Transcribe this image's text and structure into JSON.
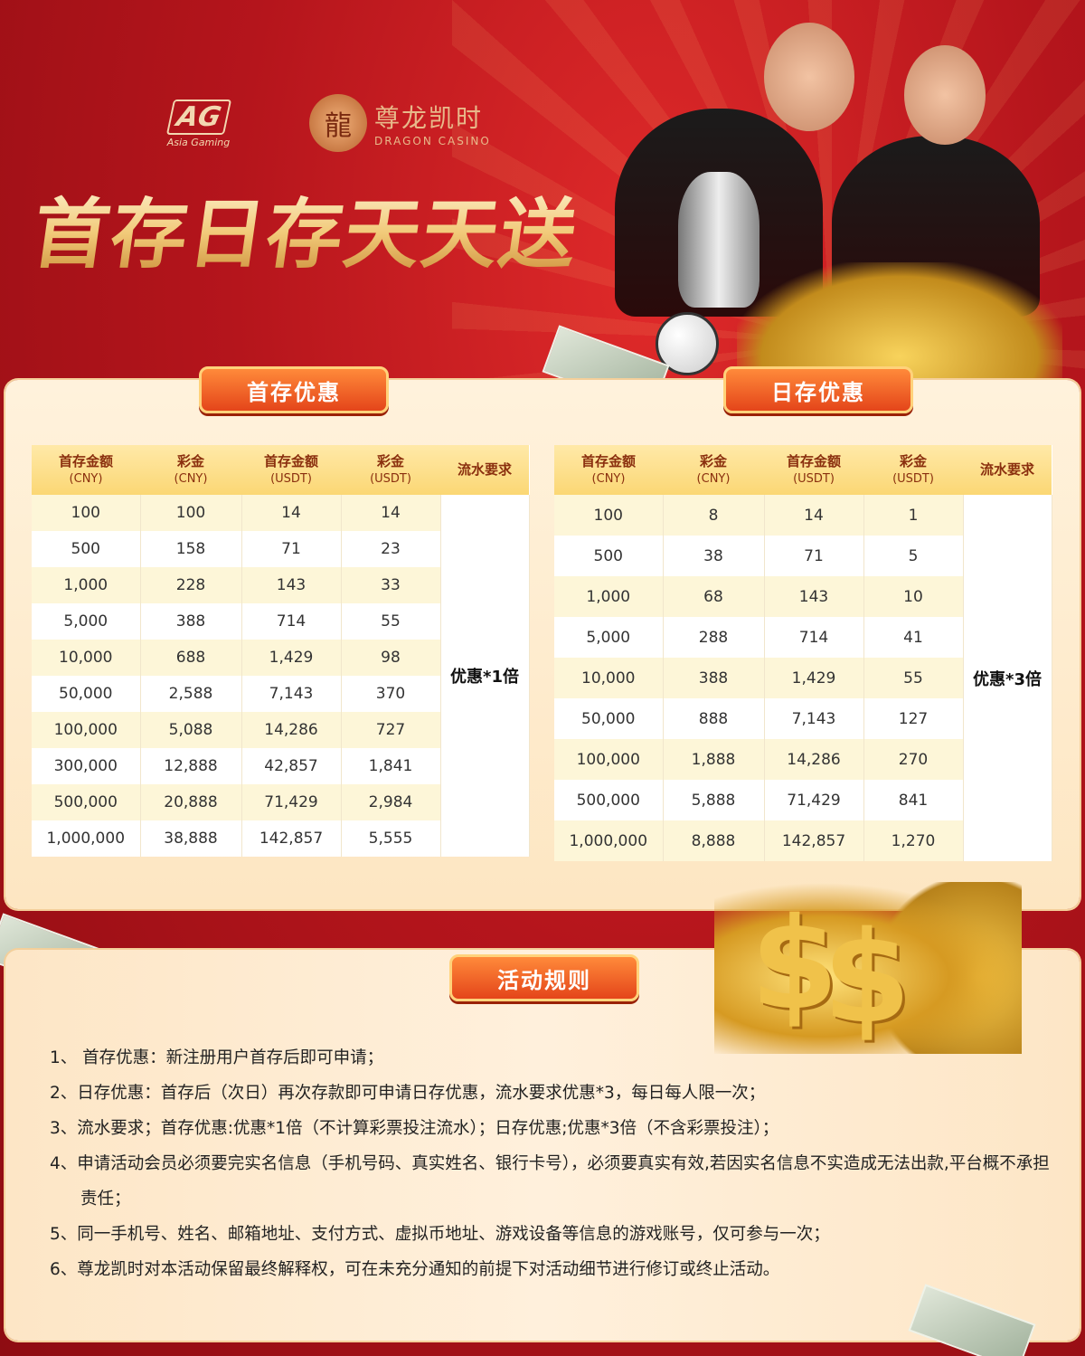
{
  "header": {
    "ag_logo": {
      "mark": "AG",
      "sub": "Asia Gaming"
    },
    "casino_logo": {
      "cn": "尊龙凯时",
      "en": "DRAGON CASINO"
    },
    "title": "首存日存天天送"
  },
  "first_deposit": {
    "tab": "首存优惠",
    "headers": [
      {
        "t": "首存金额",
        "u": "(CNY)"
      },
      {
        "t": "彩金",
        "u": "(CNY)"
      },
      {
        "t": "首存金额",
        "u": "(USDT)"
      },
      {
        "t": "彩金",
        "u": "(USDT)"
      },
      {
        "t": "流水要求",
        "u": ""
      }
    ],
    "rows": [
      [
        "100",
        "100",
        "14",
        "14"
      ],
      [
        "500",
        "158",
        "71",
        "23"
      ],
      [
        "1,000",
        "228",
        "143",
        "33"
      ],
      [
        "5,000",
        "388",
        "714",
        "55"
      ],
      [
        "10,000",
        "688",
        "1,429",
        "98"
      ],
      [
        "50,000",
        "2,588",
        "7,143",
        "370"
      ],
      [
        "100,000",
        "5,088",
        "14,286",
        "727"
      ],
      [
        "300,000",
        "12,888",
        "42,857",
        "1,841"
      ],
      [
        "500,000",
        "20,888",
        "71,429",
        "2,984"
      ],
      [
        "1,000,000",
        "38,888",
        "142,857",
        "5,555"
      ]
    ],
    "requirement": "优惠*1倍"
  },
  "daily_deposit": {
    "tab": "日存优惠",
    "headers": [
      {
        "t": "首存金额",
        "u": "(CNY)"
      },
      {
        "t": "彩金",
        "u": "(CNY)"
      },
      {
        "t": "首存金额",
        "u": "(USDT)"
      },
      {
        "t": "彩金",
        "u": "(USDT)"
      },
      {
        "t": "流水要求",
        "u": ""
      }
    ],
    "rows": [
      [
        "100",
        "8",
        "14",
        "1"
      ],
      [
        "500",
        "38",
        "71",
        "5"
      ],
      [
        "1,000",
        "68",
        "143",
        "10"
      ],
      [
        "5,000",
        "288",
        "714",
        "41"
      ],
      [
        "10,000",
        "388",
        "1,429",
        "55"
      ],
      [
        "50,000",
        "888",
        "7,143",
        "127"
      ],
      [
        "100,000",
        "1,888",
        "14,286",
        "270"
      ],
      [
        "500,000",
        "5,888",
        "71,429",
        "841"
      ],
      [
        "1,000,000",
        "8,888",
        "142,857",
        "1,270"
      ]
    ],
    "requirement": "优惠*3倍"
  },
  "rules": {
    "tab": "活动规则",
    "items": [
      "1、 首存优惠：新注册用户首存后即可申请；",
      "2、日存优惠：首存后（次日）再次存款即可申请日存优惠，流水要求优惠*3，每日每人限一次；",
      "3、流水要求；首存优惠:优惠*1倍（不计算彩票投注流水）；日存优惠;优惠*3倍（不含彩票投注）；",
      "4、申请活动会员必须要完实名信息（手机号码、真实姓名、银行卡号），必须要真实有效,若因实名信息不实造成无法出款,平台概不承担责任；",
      "5、同一手机号、姓名、邮箱地址、支付方式、虚拟币地址、游戏设备等信息的游戏账号，仅可参与一次；",
      "6、尊龙凯时对本活动保留最终解释权，可在未充分通知的前提下对活动细节进行修订或终止活动。"
    ]
  },
  "colors": {
    "background": "#b5151c",
    "panel": "#fff2dc",
    "tab": "#e4451a",
    "table_header": "#fbd774",
    "title_gold": "#f1c978"
  }
}
